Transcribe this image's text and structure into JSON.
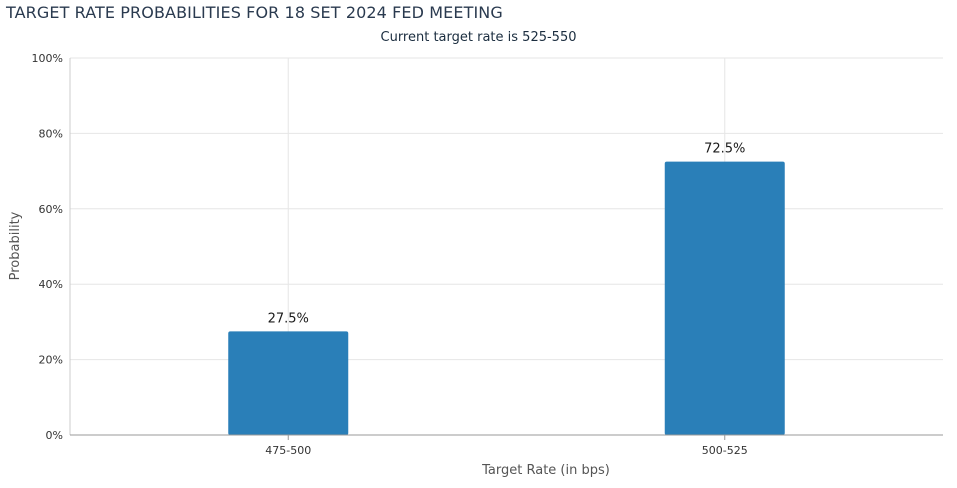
{
  "header": {
    "title": "TARGET RATE PROBABILITIES FOR 18 SET 2024 FED MEETING",
    "subtitle": "Current target rate is 525-550"
  },
  "chart_data": {
    "type": "bar",
    "title": "TARGET RATE PROBABILITIES FOR 18 SET 2024 FED MEETING",
    "subtitle": "Current target rate is 525-550",
    "xlabel": "Target Rate (in bps)",
    "ylabel": "Probability",
    "categories": [
      "475-500",
      "500-525"
    ],
    "values": [
      27.5,
      72.5
    ],
    "data_labels": [
      "27.5%",
      "72.5%"
    ],
    "ylim": [
      0,
      100
    ],
    "yticks": [
      "0%",
      "20%",
      "40%",
      "60%",
      "80%",
      "100%"
    ],
    "ytick_values": [
      0,
      20,
      40,
      60,
      80,
      100
    ],
    "grid": true,
    "bar_color": "#2a7fb8"
  }
}
